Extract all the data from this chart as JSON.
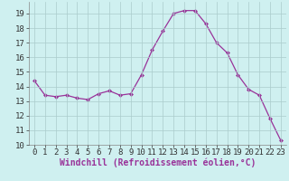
{
  "x": [
    0,
    1,
    2,
    3,
    4,
    5,
    6,
    7,
    8,
    9,
    10,
    11,
    12,
    13,
    14,
    15,
    16,
    17,
    18,
    19,
    20,
    21,
    22,
    23
  ],
  "y": [
    14.4,
    13.4,
    13.3,
    13.4,
    13.2,
    13.1,
    13.5,
    13.7,
    13.4,
    13.5,
    14.8,
    16.5,
    17.8,
    19.0,
    19.2,
    19.2,
    18.3,
    17.0,
    16.3,
    14.8,
    13.8,
    13.4,
    11.8,
    10.3
  ],
  "line_color": "#993399",
  "marker": "D",
  "marker_size": 2.0,
  "bg_color": "#cff0f0",
  "grid_color": "#aacccc",
  "xlabel": "Windchill (Refroidissement éolien,°C)",
  "xlabel_fontsize": 7,
  "ylabel_ticks": [
    10,
    11,
    12,
    13,
    14,
    15,
    16,
    17,
    18,
    19
  ],
  "xlim": [
    -0.5,
    23.5
  ],
  "ylim": [
    10,
    19.8
  ],
  "tick_fontsize": 6.5,
  "linewidth": 0.9
}
